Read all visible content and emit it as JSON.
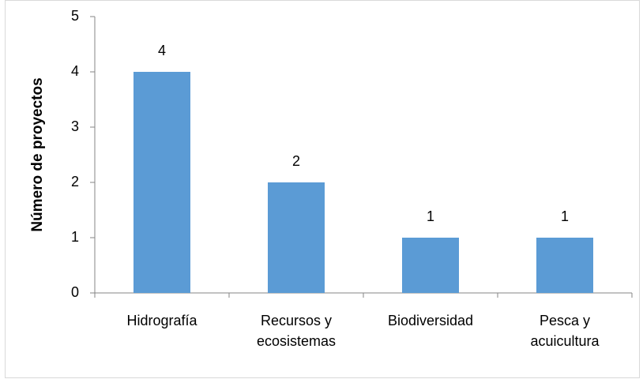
{
  "chart_data": {
    "type": "bar",
    "y_label": "Número de proyectos",
    "categories": [
      "Hidrografía",
      "Recursos y ecosistemas",
      "Biodiversidad",
      "Pesca y acuicultura"
    ],
    "values": [
      4,
      2,
      1,
      1
    ],
    "color": "#5b9bd5",
    "ylim": [
      0,
      5
    ],
    "yticks": [
      0,
      1,
      2,
      3,
      4,
      5
    ],
    "grid": false
  }
}
